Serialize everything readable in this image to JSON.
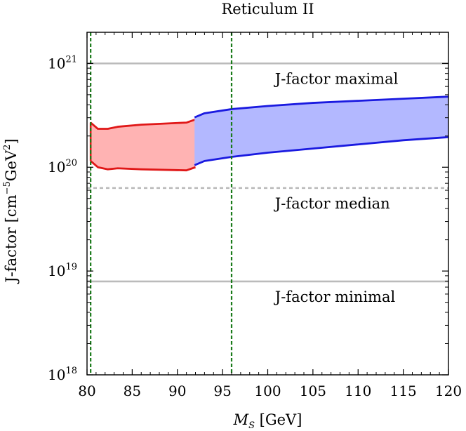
{
  "chart_data": {
    "type": "area",
    "title": "Reticulum II",
    "xlabel_main": "M",
    "xlabel_sub": "S",
    "xlabel_unit": "[GeV]",
    "ylabel_prefix": "J-factor [cm",
    "ylabel_exp1": "−5",
    "ylabel_mid": "GeV",
    "ylabel_exp2": "2",
    "ylabel_suffix": "]",
    "xlim": [
      80,
      120
    ],
    "ylim_log10": [
      18,
      21.3
    ],
    "x_ticks": [
      {
        "value": 80,
        "label": "80"
      },
      {
        "value": 85,
        "label": "85"
      },
      {
        "value": 90,
        "label": "90"
      },
      {
        "value": 95,
        "label": "95"
      },
      {
        "value": 100,
        "label": "100"
      },
      {
        "value": 105,
        "label": "105"
      },
      {
        "value": 110,
        "label": "110"
      },
      {
        "value": 115,
        "label": "115"
      },
      {
        "value": 120,
        "label": "120"
      }
    ],
    "y_ticks": [
      {
        "log10": 18,
        "base": "10",
        "exp": "18"
      },
      {
        "log10": 19,
        "base": "10",
        "exp": "19"
      },
      {
        "log10": 20,
        "base": "10",
        "exp": "20"
      },
      {
        "log10": 21,
        "base": "10",
        "exp": "21"
      }
    ],
    "hlines": [
      {
        "name": "J-factor maximal",
        "log10": 21.0,
        "style": "solid",
        "color": "#bbbbbb"
      },
      {
        "name": "J-factor median",
        "log10": 19.8,
        "style": "dashed",
        "color": "#bbbbbb"
      },
      {
        "name": "J-factor minimal",
        "log10": 18.9,
        "style": "solid",
        "color": "#bbbbbb"
      }
    ],
    "vlines": [
      {
        "x": 80.4,
        "color": "#1a7a1a"
      },
      {
        "x": 96.0,
        "color": "#1a7a1a"
      }
    ],
    "bands": [
      {
        "color": "#e01818",
        "fill": "#ffb3b3",
        "x": [
          80.4,
          81.2,
          82.3,
          83.4,
          86.0,
          91.0,
          92.0
        ],
        "upper": [
          20.43,
          20.37,
          20.37,
          20.39,
          20.41,
          20.43,
          20.46
        ],
        "lower": [
          20.06,
          20.0,
          19.98,
          19.99,
          19.98,
          19.97,
          20.0
        ]
      },
      {
        "color": "#1a1ae0",
        "fill": "#b3b8ff",
        "x": [
          91.9,
          93.0,
          96.0,
          100.0,
          105.0,
          110.0,
          115.0,
          120.0
        ],
        "upper": [
          20.48,
          20.52,
          20.56,
          20.59,
          20.62,
          20.64,
          20.66,
          20.68
        ],
        "lower": [
          20.02,
          20.06,
          20.1,
          20.14,
          20.18,
          20.22,
          20.26,
          20.29
        ]
      }
    ],
    "annotations": [
      {
        "text": "J-factor maximal",
        "x": 100.8,
        "log10": 20.85
      },
      {
        "text": "J-factor median",
        "x": 100.8,
        "log10": 19.65
      },
      {
        "text": "J-factor minimal",
        "x": 100.8,
        "log10": 18.75
      }
    ],
    "grid": false
  }
}
